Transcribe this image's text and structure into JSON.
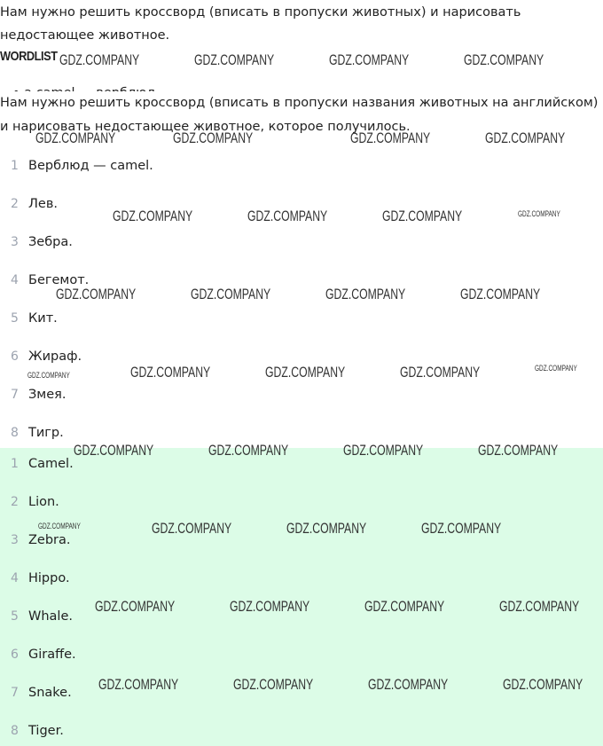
{
  "intro": [
    "Нам нужно решить кроссворд (вписать в пропуски животных) и нарисовать",
    "недостающее животное."
  ],
  "wordlist_label": "WORDLIST",
  "clipped_line": "• a camel — верблюд",
  "task": [
    "Нам нужно решить кроссворд (вписать в пропуски названия животных на английском)",
    "и нарисовать недостающее животное, которое получилось."
  ],
  "translation": [
    {
      "n": "1",
      "t": "Верблюд — camel."
    },
    {
      "n": "2",
      "t": "Лев."
    },
    {
      "n": "3",
      "t": "Зебра."
    },
    {
      "n": "4",
      "t": "Бегемот."
    },
    {
      "n": "5",
      "t": "Кит."
    },
    {
      "n": "6",
      "t": "Жираф."
    },
    {
      "n": "7",
      "t": "Змея."
    },
    {
      "n": "8",
      "t": "Тигр."
    }
  ],
  "answers": [
    {
      "n": "1",
      "t": "Camel."
    },
    {
      "n": "2",
      "t": "Lion."
    },
    {
      "n": "3",
      "t": "Zebra."
    },
    {
      "n": "4",
      "t": "Hippo."
    },
    {
      "n": "5",
      "t": "Whale."
    },
    {
      "n": "6",
      "t": "Giraffe."
    },
    {
      "n": "7",
      "t": "Snake."
    },
    {
      "n": "8",
      "t": "Tiger."
    }
  ],
  "watermark": "GDZ.COMPANY",
  "colors": {
    "answer_bg": "#dcfce7"
  }
}
